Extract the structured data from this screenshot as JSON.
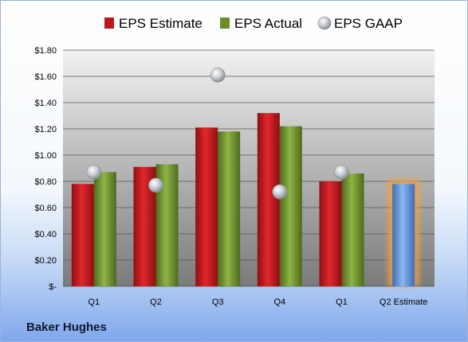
{
  "company": "Baker Hughes",
  "chart_data": {
    "type": "bar",
    "categories": [
      "Q1",
      "Q2",
      "Q3",
      "Q4",
      "Q1",
      "Q2 Estimate"
    ],
    "series": [
      {
        "name": "EPS Estimate",
        "color": "#c0161c",
        "values": [
          0.78,
          0.91,
          1.21,
          1.32,
          0.8,
          null
        ]
      },
      {
        "name": "EPS Actual",
        "color": "#6b8e2a",
        "values": [
          0.87,
          0.93,
          1.18,
          1.22,
          0.86,
          null
        ]
      },
      {
        "name": "EPS GAAP",
        "color": "#b9bcc2",
        "values": [
          0.87,
          0.77,
          1.61,
          0.72,
          0.87,
          null
        ]
      }
    ],
    "highlight": {
      "category": "Q2 Estimate",
      "value": 0.78,
      "color": "#6a9ee0",
      "glow": "#f0a040"
    },
    "ylim": [
      0,
      1.8
    ],
    "yticks": [
      0,
      0.2,
      0.4,
      0.6,
      0.8,
      1.0,
      1.2,
      1.4,
      1.6,
      1.8
    ],
    "ytick_labels": [
      "$-",
      "$0.20",
      "$0.40",
      "$0.60",
      "$0.80",
      "$1.00",
      "$1.20",
      "$1.40",
      "$1.60",
      "$1.80"
    ],
    "grid": true,
    "legend_position": "top"
  }
}
